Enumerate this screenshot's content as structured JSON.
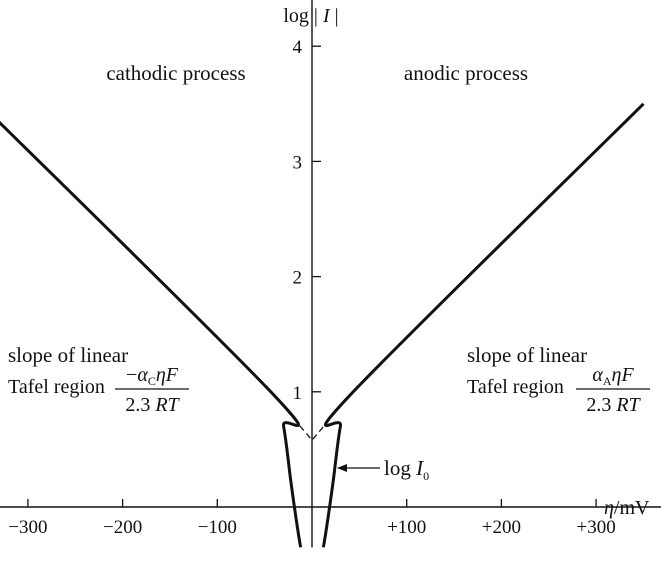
{
  "chart_data": {
    "type": "line",
    "xlabel": {
      "symbol": "η",
      "unit": "/mV"
    },
    "ylabel": {
      "prefix": "log |",
      "var": " I",
      "suffix": " |"
    },
    "xlim": [
      -360,
      400
    ],
    "ylim": [
      -0.35,
      4.6
    ],
    "x_ticks": [
      {
        "value": -300,
        "label": "−300"
      },
      {
        "value": -200,
        "label": "−200"
      },
      {
        "value": -100,
        "label": "−100"
      },
      {
        "value": 100,
        "label": "+100"
      },
      {
        "value": 200,
        "label": "+200"
      },
      {
        "value": 300,
        "label": "+300"
      }
    ],
    "y_ticks": [
      {
        "value": 1,
        "label": "1"
      },
      {
        "value": 2,
        "label": "2"
      },
      {
        "value": 3,
        "label": "3"
      },
      {
        "value": 4,
        "label": "4"
      }
    ],
    "series": [
      {
        "id": "cathodic",
        "style": "solid",
        "points": [
          [
            -350,
            3.5
          ],
          [
            -40,
            0.97
          ],
          [
            -30,
            0.7
          ],
          [
            -22,
            0.2
          ],
          [
            -15,
            -0.2
          ],
          [
            -12,
            -0.35
          ]
        ]
      },
      {
        "id": "anodic",
        "style": "solid",
        "points": [
          [
            12,
            -0.35
          ],
          [
            15,
            -0.2
          ],
          [
            22,
            0.2
          ],
          [
            30,
            0.7
          ],
          [
            40,
            0.97
          ],
          [
            350,
            3.5
          ]
        ]
      },
      {
        "id": "tafel-extrapolation",
        "style": "dashed",
        "points": [
          [
            -40,
            0.97
          ],
          [
            0,
            0.58
          ],
          [
            40,
            0.97
          ]
        ]
      }
    ],
    "annotations": {
      "cathodic_region": "cathodic process",
      "anodic_region": "anodic process",
      "left_slope_line1": "slope of linear",
      "left_slope_prefix": "Tafel region",
      "left_numerator": {
        "sign": "−",
        "alpha": "α",
        "sub": "C",
        "rest": "ηF"
      },
      "left_denominator": {
        "num": "2.3 ",
        "rest": "RT"
      },
      "right_slope_line1": "slope of linear",
      "right_slope_prefix": "Tafel region",
      "right_numerator": {
        "alpha": "α",
        "sub": "A",
        "rest": "ηF"
      },
      "right_denominator": {
        "num": "2.3 ",
        "rest": "RT"
      },
      "intercept_label": {
        "text": "log ",
        "var": "I",
        "sub": "0"
      }
    }
  }
}
